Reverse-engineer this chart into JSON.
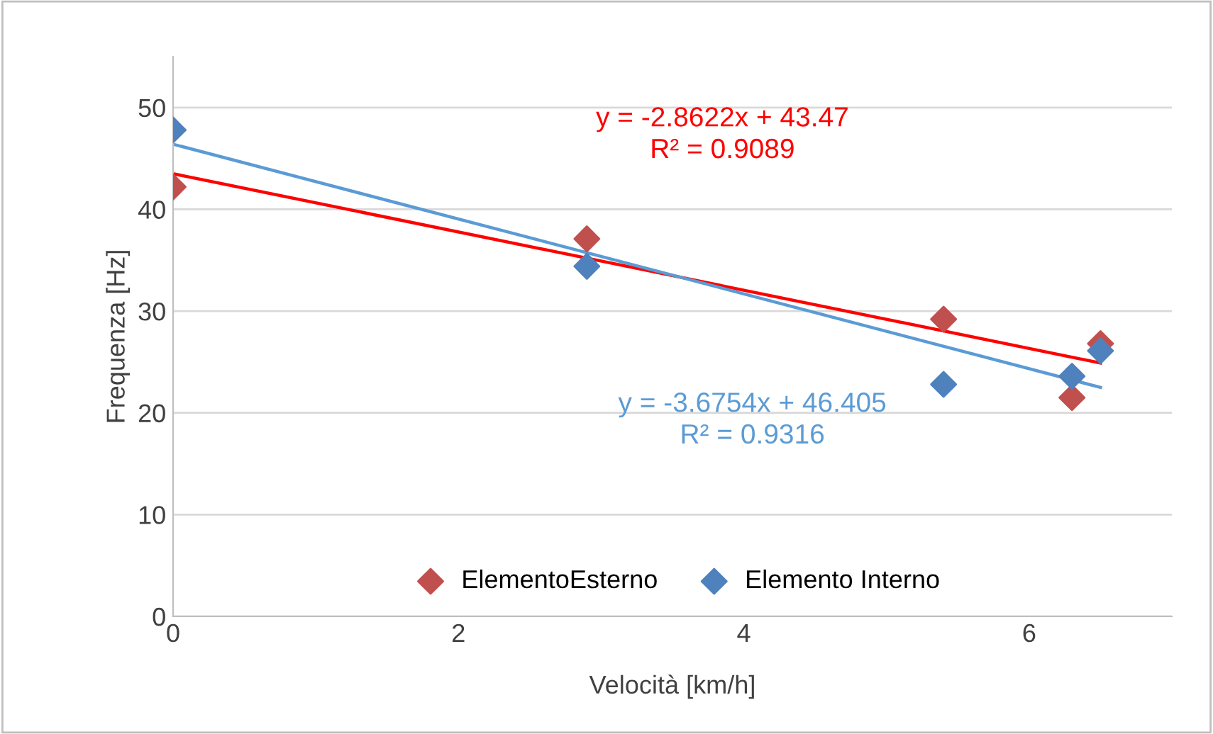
{
  "chart_data": {
    "type": "scatter",
    "xlabel": "Velocità [km/h]",
    "ylabel": "Frequenza [Hz]",
    "xlim": [
      0,
      7
    ],
    "xticks": [
      0,
      2,
      4,
      6
    ],
    "ylim": [
      0,
      55
    ],
    "yticks": [
      0,
      10,
      20,
      30,
      40,
      50
    ],
    "grid": "y",
    "legend": "bottom",
    "series": [
      {
        "name": "ElementoEsterno",
        "marker": "diamond",
        "color": "#c0504d",
        "x": [
          0,
          2.9,
          5.4,
          6.3,
          6.5
        ],
        "values": [
          42.2,
          37.1,
          29.2,
          21.5,
          26.8
        ]
      },
      {
        "name": "Elemento Interno",
        "marker": "diamond",
        "color": "#4f81bd",
        "x": [
          0,
          2.9,
          5.4,
          6.3,
          6.5
        ],
        "values": [
          47.8,
          34.4,
          22.8,
          23.6,
          26.1
        ]
      },
      {
        "type": "line",
        "color": "#ff0000",
        "x": [
          0,
          6.5
        ],
        "values": [
          43.5,
          24.9
        ],
        "marker": "none"
      },
      {
        "type": "line",
        "color": "#5b9bd5",
        "x": [
          0,
          6.5
        ],
        "values": [
          46.4,
          22.5
        ],
        "marker": "none"
      }
    ],
    "annotations": [
      "y = -2.8622x + 43.47\nR² = 0.9089",
      "y = -3.6754x + 46.405\nR² = 0.9316"
    ]
  }
}
